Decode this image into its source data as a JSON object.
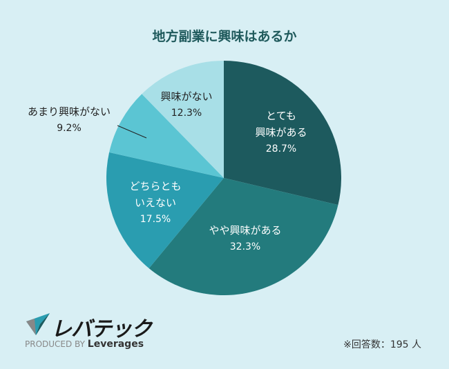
{
  "chart_data": {
    "type": "pie",
    "title": "地方副業に興味はあるか",
    "slices": [
      {
        "label_lines": [
          "とても",
          "興味がある"
        ],
        "value": 28.7,
        "value_label": "28.7%",
        "color": "#1d5a5e"
      },
      {
        "label_lines": [
          "やや興味がある"
        ],
        "value": 32.3,
        "value_label": "32.3%",
        "color": "#237b7d"
      },
      {
        "label_lines": [
          "どちらとも",
          "いえない"
        ],
        "value": 17.5,
        "value_label": "17.5%",
        "color": "#2a9db0"
      },
      {
        "label_lines": [
          "あまり興味がない"
        ],
        "value": 9.2,
        "value_label": "9.2%",
        "color": "#5bc5d3"
      },
      {
        "label_lines": [
          "興味がない"
        ],
        "value": 12.3,
        "value_label": "12.3%",
        "color": "#a8dfe7"
      }
    ],
    "start": "12 o'clock, clockwise"
  },
  "footer": {
    "brand": "レバテック",
    "produced_by": "PRODUCED BY",
    "company": "Leverages",
    "note": "※回答数：195 人"
  }
}
